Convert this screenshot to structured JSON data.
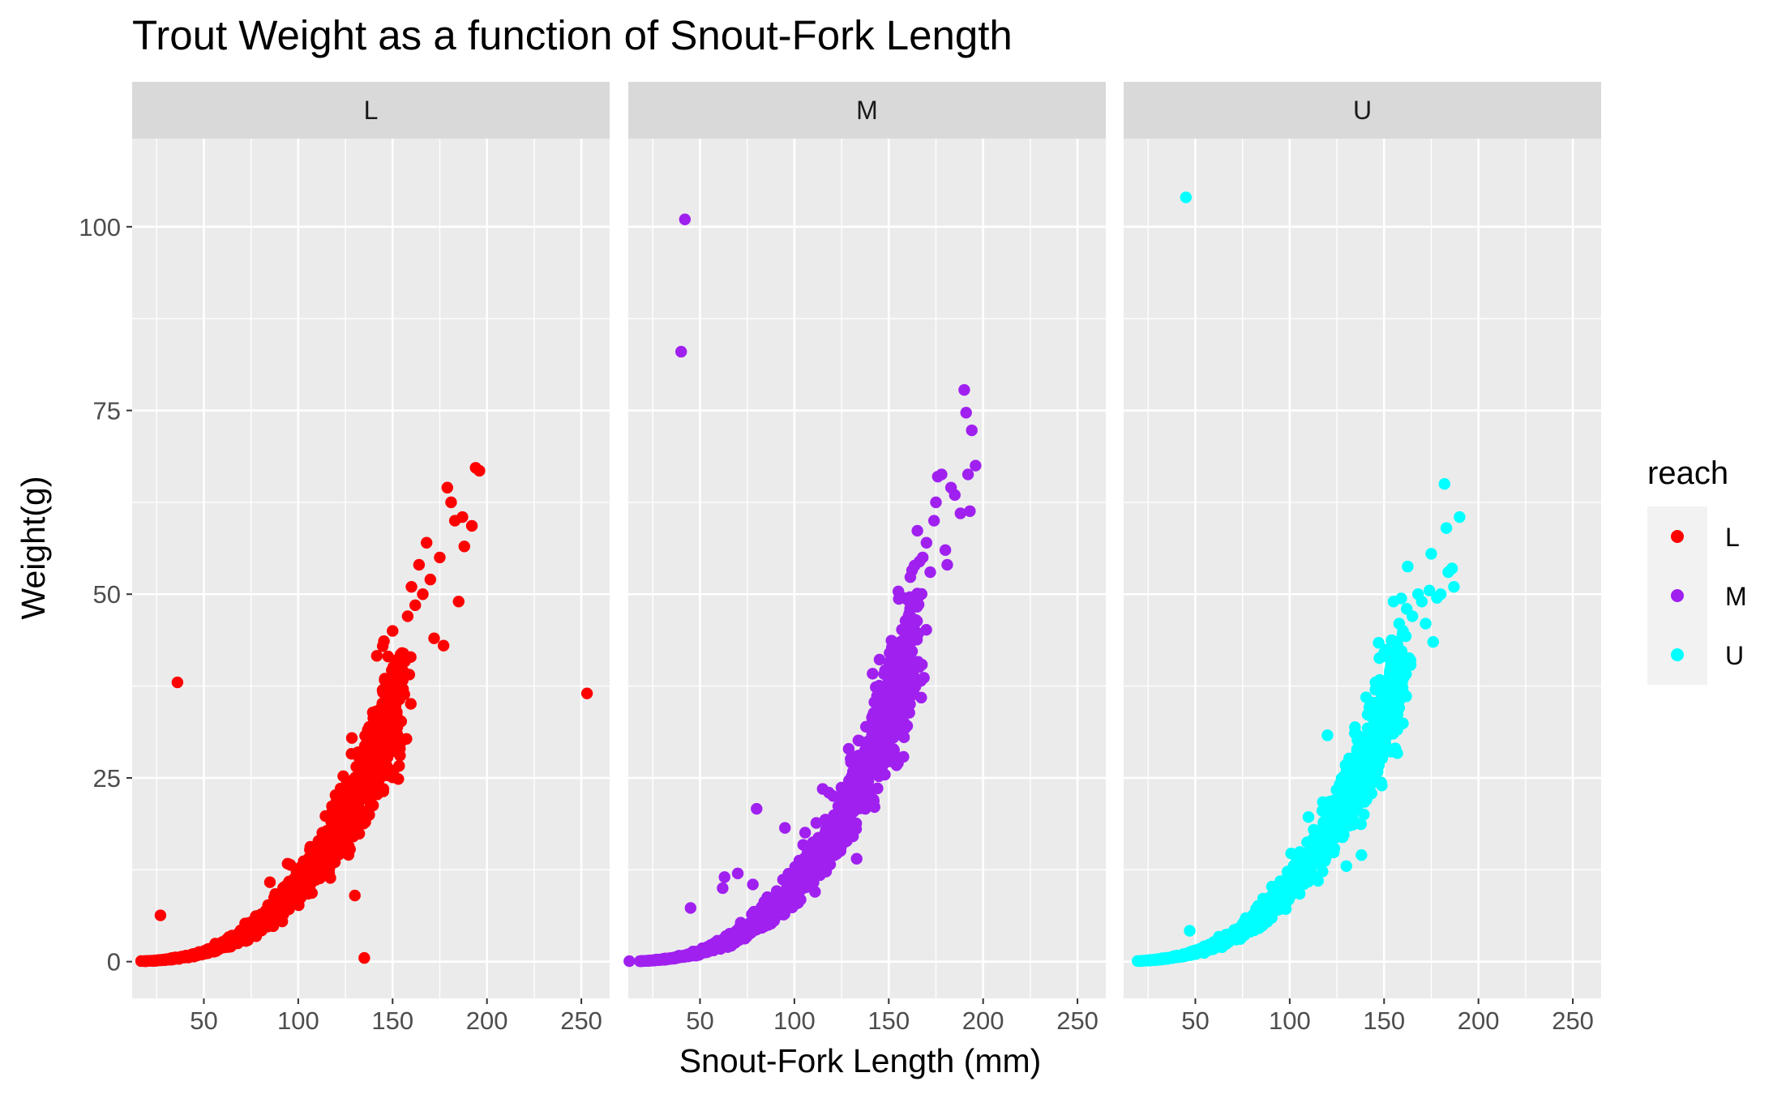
{
  "chart_data": {
    "type": "scatter",
    "title": "Trout Weight as a function of Snout-Fork Length",
    "xlabel": "Snout-Fork Length (mm)",
    "ylabel": "Weight(g)",
    "xlim": [
      12,
      265
    ],
    "ylim": [
      -5,
      112
    ],
    "x_ticks": [
      50,
      100,
      150,
      200,
      250
    ],
    "y_ticks": [
      0,
      25,
      50,
      75,
      100
    ],
    "grid": true,
    "facet_by": "reach",
    "facets": [
      "L",
      "M",
      "U"
    ],
    "legend": {
      "title": "reach",
      "position": "right",
      "entries": [
        {
          "label": "L",
          "color": "#FF0000"
        },
        {
          "label": "M",
          "color": "#A020F0"
        },
        {
          "label": "U",
          "color": "#00FFFF"
        }
      ]
    },
    "series": [
      {
        "name": "L",
        "color": "#FF0000",
        "trend": {
          "a": 1.15e-05,
          "b": 2.97,
          "x_range": [
            22,
            155
          ],
          "scatter": 0.12
        },
        "points": [
          [
            27,
            6.3
          ],
          [
            36,
            38.0
          ],
          [
            85,
            10.8
          ],
          [
            130,
            9.0
          ],
          [
            135,
            0.5
          ],
          [
            138,
            30.0
          ],
          [
            145,
            37.0
          ],
          [
            150,
            45.0
          ],
          [
            155,
            42.0
          ],
          [
            158,
            47.0
          ],
          [
            160,
            51.0
          ],
          [
            162,
            48.5
          ],
          [
            164,
            54.0
          ],
          [
            166,
            50.0
          ],
          [
            168,
            57.0
          ],
          [
            170,
            52.0
          ],
          [
            172,
            44.0
          ],
          [
            175,
            55.0
          ],
          [
            177,
            43.0
          ],
          [
            179,
            64.5
          ],
          [
            181,
            62.5
          ],
          [
            183,
            60.0
          ],
          [
            185,
            49.0
          ],
          [
            187,
            60.5
          ],
          [
            188,
            56.5
          ],
          [
            192,
            59.3
          ],
          [
            194,
            67.2
          ],
          [
            196,
            66.8
          ],
          [
            253,
            36.5
          ]
        ]
      },
      {
        "name": "M",
        "color": "#A020F0",
        "trend": {
          "a": 1.15e-05,
          "b": 2.97,
          "x_range": [
            20,
            165
          ],
          "scatter": 0.12
        },
        "points": [
          [
            40,
            83.0
          ],
          [
            42,
            101.0
          ],
          [
            45,
            7.3
          ],
          [
            62,
            10.0
          ],
          [
            63,
            11.5
          ],
          [
            70,
            12.0
          ],
          [
            78,
            10.5
          ],
          [
            80,
            20.8
          ],
          [
            85,
            6.5
          ],
          [
            95,
            18.2
          ],
          [
            115,
            23.5
          ],
          [
            133,
            14.0
          ],
          [
            165,
            50.0
          ],
          [
            168,
            55.0
          ],
          [
            170,
            57.0
          ],
          [
            172,
            53.0
          ],
          [
            174,
            60.0
          ],
          [
            175,
            62.5
          ],
          [
            176,
            66.0
          ],
          [
            178,
            66.3
          ],
          [
            180,
            56.0
          ],
          [
            181,
            54.0
          ],
          [
            183,
            64.5
          ],
          [
            185,
            63.5
          ],
          [
            188,
            61.0
          ],
          [
            190,
            77.8
          ],
          [
            191,
            74.7
          ],
          [
            192,
            66.3
          ],
          [
            193,
            61.3
          ],
          [
            194,
            72.3
          ],
          [
            196,
            67.5
          ]
        ]
      },
      {
        "name": "U",
        "color": "#00FFFF",
        "trend": {
          "a": 1.15e-05,
          "b": 2.97,
          "x_range": [
            22,
            160
          ],
          "scatter": 0.11
        },
        "points": [
          [
            45,
            104.0
          ],
          [
            47,
            4.2
          ],
          [
            115,
            11.0
          ],
          [
            120,
            30.8
          ],
          [
            130,
            13.0
          ],
          [
            138,
            14.5
          ],
          [
            150,
            42.0
          ],
          [
            155,
            49.0
          ],
          [
            158,
            46.0
          ],
          [
            160,
            45.0
          ],
          [
            162,
            48.0
          ],
          [
            164,
            41.0
          ],
          [
            165,
            47.0
          ],
          [
            168,
            50.0
          ],
          [
            170,
            49.0
          ],
          [
            172,
            46.0
          ],
          [
            174,
            50.5
          ],
          [
            175,
            55.5
          ],
          [
            176,
            43.5
          ],
          [
            178,
            49.5
          ],
          [
            180,
            50.0
          ],
          [
            182,
            65.0
          ],
          [
            183,
            59.0
          ],
          [
            184,
            53.0
          ],
          [
            186,
            53.5
          ],
          [
            187,
            51.0
          ],
          [
            190,
            60.5
          ]
        ]
      }
    ]
  }
}
